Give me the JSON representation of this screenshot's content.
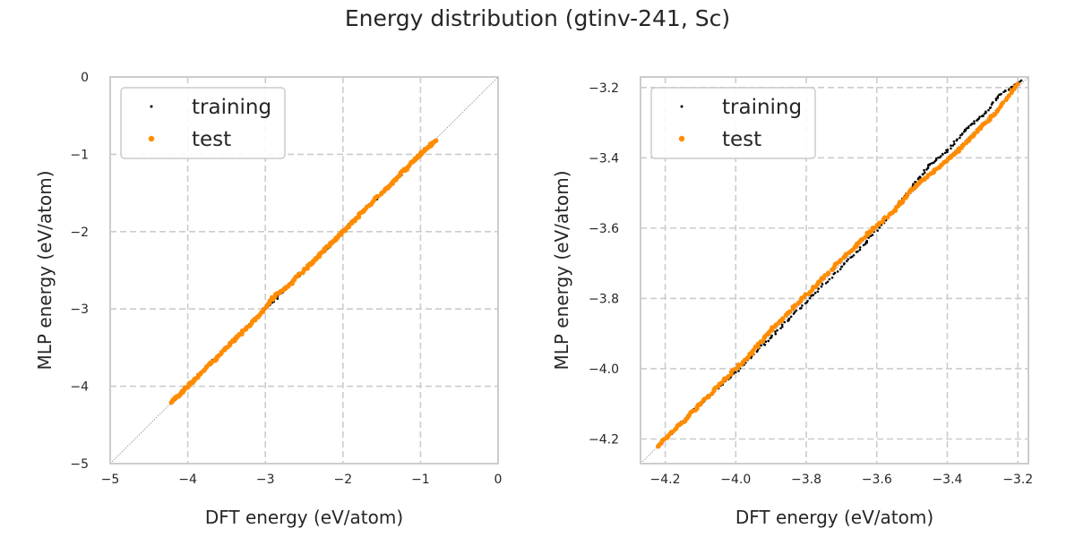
{
  "figure": {
    "title": "Energy distribution (gtinv-241, Sc)"
  },
  "colors": {
    "training": "#000000",
    "test": "#ff8c00",
    "grid": "#cccccc",
    "spine": "#cccccc",
    "diagonal": "#888888"
  },
  "chart_data": [
    {
      "type": "scatter",
      "title": "",
      "xlabel": "DFT energy (eV/atom)",
      "ylabel": "MLP energy (eV/atom)",
      "xlim": [
        -5,
        0
      ],
      "ylim": [
        -5,
        0
      ],
      "xticks": [
        -5,
        -4,
        -3,
        -2,
        -1,
        0
      ],
      "yticks": [
        -5,
        -4,
        -3,
        -2,
        -1,
        0
      ],
      "xtick_labels": [
        "−5",
        "−4",
        "−3",
        "−2",
        "−1",
        "0"
      ],
      "ytick_labels": [
        "−5",
        "−4",
        "−3",
        "−2",
        "−1",
        "0"
      ],
      "grid": true,
      "diagonal": true,
      "legend_position": "top-left",
      "series": [
        {
          "name": "training",
          "x": [
            -4.22,
            -4.1,
            -3.95,
            -3.8,
            -3.6,
            -3.4,
            -3.2,
            -3.0,
            -2.8,
            -2.55,
            -2.35,
            -2.2,
            -2.0,
            -1.85,
            -1.6,
            -1.4,
            -1.2,
            -1.05,
            -0.85
          ],
          "y": [
            -4.22,
            -4.1,
            -3.95,
            -3.8,
            -3.6,
            -3.4,
            -3.2,
            -3.0,
            -2.8,
            -2.55,
            -2.35,
            -2.22,
            -2.0,
            -1.85,
            -1.6,
            -1.4,
            -1.2,
            -1.05,
            -0.85
          ]
        },
        {
          "name": "test",
          "x": [
            -4.2,
            -4.05,
            -3.9,
            -3.7,
            -3.5,
            -3.3,
            -3.1,
            -2.9,
            -2.7,
            -2.45,
            -2.3,
            -2.1,
            -1.95,
            -1.75,
            -1.5,
            -1.3,
            -1.1,
            -0.95,
            -0.8
          ],
          "y": [
            -4.2,
            -4.05,
            -3.9,
            -3.7,
            -3.5,
            -3.3,
            -3.1,
            -2.85,
            -2.7,
            -2.45,
            -2.3,
            -2.1,
            -1.95,
            -1.75,
            -1.5,
            -1.3,
            -1.1,
            -0.95,
            -0.82
          ]
        }
      ]
    },
    {
      "type": "scatter",
      "title": "",
      "xlabel": "DFT energy (eV/atom)",
      "ylabel": "MLP energy (eV/atom)",
      "xlim": [
        -4.27,
        -3.17
      ],
      "ylim": [
        -4.27,
        -3.17
      ],
      "xticks": [
        -4.2,
        -4.0,
        -3.8,
        -3.6,
        -3.4,
        -3.2
      ],
      "yticks": [
        -4.2,
        -4.0,
        -3.8,
        -3.6,
        -3.4,
        -3.2
      ],
      "xtick_labels": [
        "−4.2",
        "−4.0",
        "−3.8",
        "−3.6",
        "−3.4",
        "−3.2"
      ],
      "ytick_labels": [
        "−4.2",
        "−4.0",
        "−3.8",
        "−3.6",
        "−3.4",
        "−3.2"
      ],
      "grid": true,
      "diagonal": true,
      "legend_position": "top-left",
      "series": [
        {
          "name": "training",
          "x": [
            -4.21,
            -4.15,
            -4.08,
            -4.0,
            -3.92,
            -3.85,
            -3.78,
            -3.7,
            -3.63,
            -3.56,
            -3.49,
            -3.45,
            -3.4,
            -3.35,
            -3.3,
            -3.25,
            -3.19
          ],
          "y": [
            -4.21,
            -4.15,
            -4.08,
            -4.01,
            -3.93,
            -3.86,
            -3.79,
            -3.71,
            -3.64,
            -3.56,
            -3.47,
            -3.42,
            -3.38,
            -3.32,
            -3.28,
            -3.22,
            -3.18
          ]
        },
        {
          "name": "test",
          "x": [
            -4.22,
            -4.16,
            -4.1,
            -4.03,
            -3.96,
            -3.9,
            -3.83,
            -3.76,
            -3.69,
            -3.62,
            -3.55,
            -3.5,
            -3.44,
            -3.38,
            -3.33,
            -3.27,
            -3.2
          ],
          "y": [
            -4.22,
            -4.16,
            -4.1,
            -4.03,
            -3.96,
            -3.89,
            -3.82,
            -3.75,
            -3.68,
            -3.61,
            -3.55,
            -3.49,
            -3.44,
            -3.39,
            -3.34,
            -3.28,
            -3.19
          ]
        }
      ]
    }
  ]
}
